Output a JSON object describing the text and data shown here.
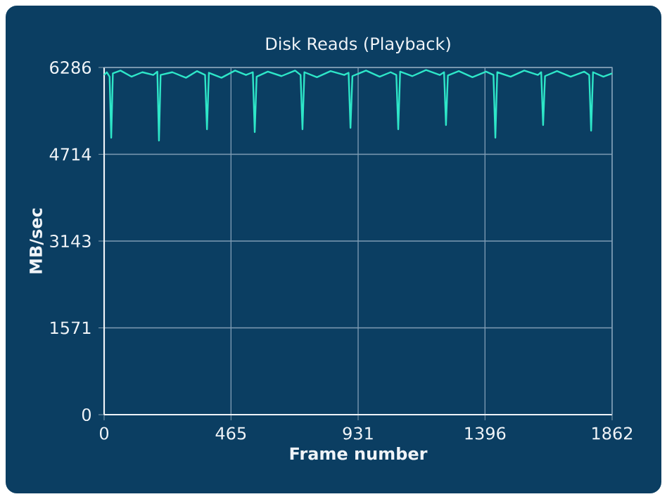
{
  "chart_data": {
    "type": "line",
    "title": "Disk Reads (Playback)",
    "xlabel": "Frame number",
    "ylabel": "MB/sec",
    "xlim": [
      0,
      1862
    ],
    "xticks": [
      0,
      465,
      931,
      1396,
      1862
    ],
    "ylim": [
      0,
      6286
    ],
    "yticks": [
      0,
      1571,
      3143,
      4714,
      6286
    ],
    "grid": true,
    "marker": "none",
    "line_style": "solid",
    "series": [
      {
        "color": "#2ee6c8",
        "x": [
          0,
          10,
          20,
          26,
          32,
          60,
          100,
          140,
          180,
          195,
          201,
          207,
          250,
          300,
          340,
          370,
          377,
          384,
          430,
          480,
          520,
          545,
          552,
          559,
          600,
          650,
          700,
          720,
          727,
          734,
          780,
          830,
          880,
          896,
          903,
          910,
          960,
          1010,
          1050,
          1071,
          1078,
          1085,
          1130,
          1180,
          1230,
          1246,
          1253,
          1260,
          1300,
          1350,
          1400,
          1427,
          1434,
          1441,
          1490,
          1540,
          1590,
          1602,
          1609,
          1616,
          1660,
          1710,
          1760,
          1778,
          1785,
          1792,
          1830,
          1862
        ],
        "values": [
          6150,
          6200,
          6120,
          5014,
          6180,
          6230,
          6120,
          6200,
          6150,
          6210,
          4963,
          6150,
          6200,
          6100,
          6220,
          6150,
          5166,
          6190,
          6100,
          6230,
          6150,
          6200,
          5115,
          6120,
          6210,
          6130,
          6230,
          6150,
          5166,
          6200,
          6110,
          6220,
          6150,
          6190,
          5192,
          6130,
          6230,
          6120,
          6200,
          6150,
          5166,
          6210,
          6130,
          6240,
          6150,
          6200,
          5243,
          6140,
          6220,
          6110,
          6210,
          6150,
          5014,
          6200,
          6120,
          6230,
          6150,
          6200,
          5243,
          6130,
          6220,
          6120,
          6210,
          6150,
          5141,
          6200,
          6120,
          6180
        ]
      }
    ]
  }
}
